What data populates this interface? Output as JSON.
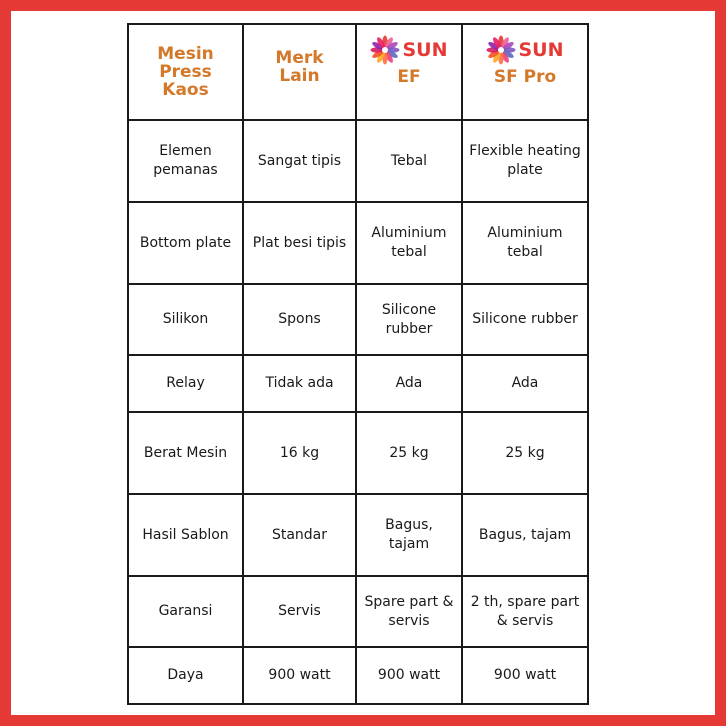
{
  "header": {
    "col0": "Mesin Press Kaos",
    "col1": "Merk Lain",
    "col2_brand": "SUN",
    "col2_model": "EF",
    "col3_brand": "SUN",
    "col3_model": "SF Pro",
    "brand_color": "#e53935",
    "header_color": "#d4782a"
  },
  "rows": [
    {
      "label": "Elemen pemanas",
      "c1": "Sangat tipis",
      "c2": "Tebal",
      "c3": "Flexible heating plate"
    },
    {
      "label": "Bottom plate",
      "c1": "Plat besi tipis",
      "c2": "Aluminium tebal",
      "c3": "Aluminium tebal"
    },
    {
      "label": "Silikon",
      "c1": "Spons",
      "c2": "Silicone rubber",
      "c3": "Silicone rubber"
    },
    {
      "label": "Relay",
      "c1": "Tidak ada",
      "c2": "Ada",
      "c3": "Ada"
    },
    {
      "label": "Berat Mesin",
      "c1": "16 kg",
      "c2": "25 kg",
      "c3": "25 kg"
    },
    {
      "label": "Hasil Sablon",
      "c1": "Standar",
      "c2": "Bagus, tajam",
      "c3": "Bagus, tajam"
    },
    {
      "label": "Garansi",
      "c1": "Servis",
      "c2": "Spare part & servis",
      "c3": "2 th, spare part & servis"
    },
    {
      "label": "Daya",
      "c1": "900 watt",
      "c2": "900 watt",
      "c3": "900 watt"
    }
  ],
  "icons": {
    "brand_logo": "sun-flower-logo-icon"
  },
  "frame_color": "#e53935"
}
